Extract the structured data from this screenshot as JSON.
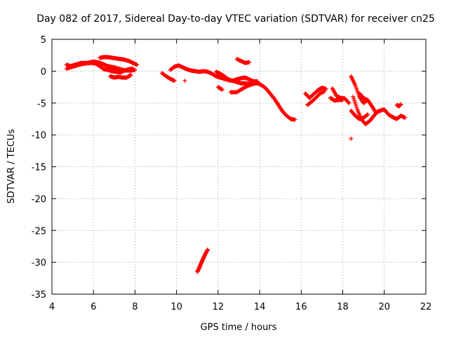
{
  "chart_data": {
    "type": "scatter",
    "title": "Day 082 of 2017, Sidereal Day-to-day VTEC variation (SDTVAR) for receiver cn25",
    "xlabel": "GPS time / hours",
    "ylabel": "SDTVAR / TECUs",
    "xlim": [
      4,
      22
    ],
    "ylim": [
      -35,
      5
    ],
    "xticks": [
      4,
      6,
      8,
      10,
      12,
      14,
      16,
      18,
      20,
      22
    ],
    "yticks": [
      5,
      0,
      -5,
      -10,
      -15,
      -20,
      -25,
      -30,
      -35
    ],
    "grid": true,
    "marker": "+",
    "color": "#ff0000",
    "segments": [
      {
        "name": "seg-a",
        "points": [
          [
            4.7,
            1.0
          ],
          [
            4.9,
            0.8
          ],
          [
            5.1,
            1.0
          ],
          [
            5.4,
            1.3
          ],
          [
            5.7,
            1.3
          ],
          [
            6.0,
            1.5
          ],
          [
            6.2,
            1.4
          ],
          [
            6.4,
            1.2
          ],
          [
            6.6,
            0.9
          ],
          [
            6.8,
            0.7
          ],
          [
            7.0,
            0.6
          ],
          [
            7.2,
            0.4
          ],
          [
            7.4,
            0.2
          ],
          [
            7.6,
            0.1
          ],
          [
            7.8,
            0.1
          ],
          [
            8.0,
            0.2
          ]
        ]
      },
      {
        "name": "seg-b",
        "points": [
          [
            4.7,
            0.4
          ],
          [
            5.0,
            0.7
          ],
          [
            5.3,
            1.0
          ],
          [
            5.6,
            1.2
          ],
          [
            5.9,
            1.3
          ],
          [
            6.1,
            1.2
          ],
          [
            6.3,
            0.8
          ],
          [
            6.5,
            0.3
          ],
          [
            6.7,
            0.2
          ],
          [
            6.9,
            0.0
          ],
          [
            7.1,
            -0.1
          ],
          [
            7.3,
            -0.2
          ],
          [
            7.5,
            0.1
          ],
          [
            7.7,
            0.3
          ],
          [
            7.9,
            0.4
          ]
        ]
      },
      {
        "name": "seg-c",
        "points": [
          [
            6.3,
            2.1
          ],
          [
            6.5,
            2.2
          ],
          [
            6.7,
            2.2
          ],
          [
            6.9,
            2.1
          ],
          [
            7.1,
            2.0
          ],
          [
            7.3,
            1.9
          ],
          [
            7.5,
            1.8
          ],
          [
            7.7,
            1.6
          ],
          [
            7.9,
            1.3
          ],
          [
            8.1,
            1.0
          ]
        ]
      },
      {
        "name": "seg-d",
        "points": [
          [
            6.8,
            -0.8
          ],
          [
            7.0,
            -1.0
          ],
          [
            7.2,
            -0.9
          ],
          [
            7.4,
            -1.0
          ],
          [
            7.6,
            -1.0
          ],
          [
            7.8,
            -0.6
          ]
        ]
      },
      {
        "name": "seg-e",
        "points": [
          [
            9.3,
            -0.3
          ],
          [
            9.5,
            -0.8
          ],
          [
            9.7,
            -1.2
          ],
          [
            9.9,
            -1.5
          ]
        ]
      },
      {
        "name": "seg-f",
        "points": [
          [
            9.7,
            0.2
          ],
          [
            9.9,
            0.7
          ],
          [
            10.1,
            0.9
          ],
          [
            10.3,
            0.6
          ],
          [
            10.5,
            0.3
          ],
          [
            10.7,
            0.1
          ],
          [
            10.9,
            0.0
          ],
          [
            11.1,
            -0.1
          ],
          [
            11.3,
            0.0
          ],
          [
            11.5,
            -0.1
          ],
          [
            11.7,
            -0.4
          ],
          [
            11.9,
            -0.8
          ],
          [
            12.1,
            -1.0
          ],
          [
            12.3,
            -1.2
          ],
          [
            12.5,
            -1.4
          ],
          [
            12.7,
            -1.5
          ],
          [
            12.9,
            -1.7
          ],
          [
            13.1,
            -1.9
          ],
          [
            13.3,
            -1.9
          ],
          [
            13.5,
            -2.0
          ],
          [
            13.7,
            -1.9
          ],
          [
            13.9,
            -1.9
          ],
          [
            14.1,
            -2.2
          ],
          [
            14.3,
            -2.7
          ],
          [
            14.5,
            -3.5
          ],
          [
            14.7,
            -4.3
          ],
          [
            14.9,
            -5.3
          ],
          [
            15.1,
            -6.3
          ],
          [
            15.3,
            -7.0
          ],
          [
            15.5,
            -7.5
          ],
          [
            15.7,
            -7.6
          ]
        ]
      },
      {
        "name": "seg-g",
        "points": [
          [
            11.9,
            -0.1
          ],
          [
            12.1,
            -0.4
          ],
          [
            12.3,
            -0.8
          ],
          [
            12.5,
            -1.3
          ],
          [
            12.7,
            -1.5
          ],
          [
            12.9,
            -1.3
          ],
          [
            13.1,
            -1.1
          ],
          [
            13.3,
            -1.0
          ],
          [
            13.5,
            -1.3
          ],
          [
            13.7,
            -1.6
          ],
          [
            13.9,
            -1.6
          ]
        ]
      },
      {
        "name": "seg-h",
        "points": [
          [
            12.0,
            -2.5
          ],
          [
            12.2,
            -2.9
          ]
        ]
      },
      {
        "name": "seg-i",
        "points": [
          [
            12.6,
            -3.3
          ],
          [
            12.9,
            -3.3
          ],
          [
            13.2,
            -2.7
          ],
          [
            13.5,
            -2.2
          ],
          [
            13.8,
            -1.9
          ]
        ]
      },
      {
        "name": "seg-j",
        "points": [
          [
            12.9,
            1.9
          ],
          [
            13.1,
            1.6
          ],
          [
            13.3,
            1.3
          ],
          [
            13.5,
            1.4
          ]
        ]
      },
      {
        "name": "seg-k",
        "points": [
          [
            10.4,
            -1.5
          ]
        ]
      },
      {
        "name": "seg-l",
        "points": [
          [
            16.2,
            -3.5
          ],
          [
            16.4,
            -4.2
          ],
          [
            16.6,
            -3.6
          ],
          [
            16.8,
            -3.0
          ],
          [
            17.0,
            -2.6
          ],
          [
            17.2,
            -2.8
          ]
        ]
      },
      {
        "name": "seg-m",
        "points": [
          [
            16.3,
            -5.3
          ],
          [
            16.5,
            -4.8
          ],
          [
            16.7,
            -4.2
          ],
          [
            16.9,
            -3.5
          ],
          [
            17.1,
            -3.2
          ]
        ]
      },
      {
        "name": "seg-n",
        "points": [
          [
            17.5,
            -2.7
          ],
          [
            17.7,
            -3.9
          ],
          [
            17.9,
            -4.2
          ],
          [
            18.1,
            -4.3
          ],
          [
            18.3,
            -5.0
          ]
        ]
      },
      {
        "name": "seg-o",
        "points": [
          [
            17.4,
            -4.2
          ],
          [
            17.6,
            -4.6
          ],
          [
            17.8,
            -4.5
          ],
          [
            18.0,
            -4.5
          ]
        ]
      },
      {
        "name": "seg-p",
        "points": [
          [
            18.4,
            -0.8
          ],
          [
            18.6,
            -2.2
          ],
          [
            18.8,
            -4.0
          ],
          [
            19.0,
            -5.0
          ],
          [
            19.2,
            -4.5
          ],
          [
            19.4,
            -5.5
          ],
          [
            19.6,
            -6.5
          ],
          [
            19.8,
            -6.2
          ],
          [
            20.0,
            -6.0
          ],
          [
            20.2,
            -6.8
          ],
          [
            20.4,
            -7.2
          ],
          [
            20.6,
            -7.5
          ],
          [
            20.8,
            -7.0
          ],
          [
            21.0,
            -7.3
          ]
        ]
      },
      {
        "name": "seg-q",
        "points": [
          [
            18.5,
            -4.0
          ],
          [
            18.7,
            -6.0
          ],
          [
            18.9,
            -7.6
          ],
          [
            19.1,
            -8.3
          ],
          [
            19.3,
            -7.8
          ],
          [
            19.5,
            -7.0
          ],
          [
            19.7,
            -6.3
          ]
        ]
      },
      {
        "name": "seg-r",
        "points": [
          [
            18.4,
            -6.2
          ],
          [
            18.6,
            -7.0
          ],
          [
            18.8,
            -7.5
          ],
          [
            19.0,
            -7.3
          ],
          [
            19.2,
            -6.8
          ]
        ]
      },
      {
        "name": "seg-s",
        "points": [
          [
            18.8,
            -3.5
          ],
          [
            19.0,
            -4.2
          ],
          [
            19.2,
            -4.6
          ]
        ]
      },
      {
        "name": "seg-t",
        "points": [
          [
            18.4,
            -10.6
          ]
        ]
      },
      {
        "name": "seg-u",
        "points": [
          [
            20.6,
            -5.3
          ],
          [
            20.7,
            -5.5
          ],
          [
            20.8,
            -5.2
          ]
        ]
      },
      {
        "name": "seg-v",
        "points": [
          [
            11.0,
            -31.5
          ],
          [
            11.1,
            -30.8
          ],
          [
            11.2,
            -30.0
          ],
          [
            11.3,
            -29.3
          ],
          [
            11.4,
            -28.6
          ],
          [
            11.5,
            -28.0
          ]
        ]
      }
    ]
  }
}
